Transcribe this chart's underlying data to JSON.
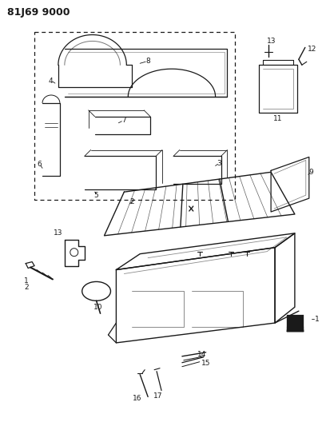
{
  "title": "81J69 9000",
  "bg_color": "#ffffff",
  "line_color": "#1a1a1a",
  "fig_width": 4.14,
  "fig_height": 5.33,
  "dpi": 100
}
